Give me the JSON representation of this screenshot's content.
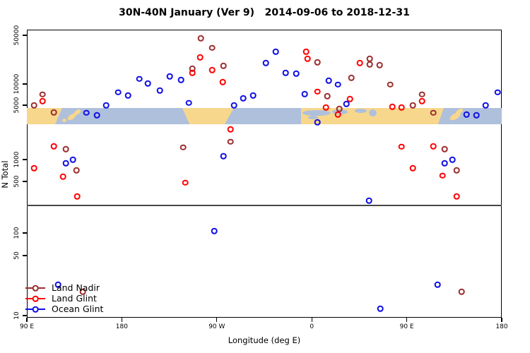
{
  "title": "30N-40N January (Ver 9)   2014-09-06 to 2018-12-31",
  "x_axis": {
    "label": "Longitude (deg E)",
    "ticks": [
      {
        "deg": 0,
        "label": "90 E"
      },
      {
        "deg": 90,
        "label": "180"
      },
      {
        "deg": 180,
        "label": "90 W"
      },
      {
        "deg": 270,
        "label": "0"
      },
      {
        "deg": 360,
        "label": "90 E"
      },
      {
        "deg": 450,
        "label": "180"
      }
    ]
  },
  "y_axis": {
    "label": "N Total",
    "scale": "log",
    "ticks": [
      {
        "value": 50000,
        "label": "50000"
      },
      {
        "value": 10000,
        "label": "10000"
      },
      {
        "value": 5000,
        "label": "5000"
      },
      {
        "value": 1000,
        "label": "1000"
      },
      {
        "value": 500,
        "label": "500"
      },
      {
        "value": 100,
        "label": "100"
      },
      {
        "value": 50,
        "label": "50"
      },
      {
        "value": 10,
        "label": "10"
      }
    ]
  },
  "map_band": {
    "land_color": "#F7D78C",
    "ocean_color": "#AFC0DC"
  },
  "chart_data": {
    "type": "scatter",
    "x_unit": "degrees east along axis starting at 90E (axis spans 450 deg, longitudes wrap)",
    "y_unit": "N Total (log scale)",
    "series": [
      {
        "name": "Land Nadir",
        "color": "#9B2D2D",
        "points": [
          [
            164.7,
            45500
          ],
          [
            175.4,
            33000
          ],
          [
            156.7,
            16700
          ],
          [
            186.2,
            18300
          ],
          [
            275.2,
            20600
          ],
          [
            284.6,
            6750
          ],
          [
            296.0,
            4500
          ],
          [
            307.4,
            12300
          ],
          [
            324.8,
            23200
          ],
          [
            324.8,
            19200
          ],
          [
            334.2,
            18800
          ],
          [
            344.2,
            9800
          ],
          [
            374.3,
            7100
          ],
          [
            385.1,
            4000
          ],
          [
            407.1,
            715
          ],
          [
            395.8,
            1370
          ],
          [
            411.8,
            19
          ],
          [
            52.9,
            19
          ],
          [
            6.7,
            5000
          ],
          [
            365.6,
            5000
          ],
          [
            14.7,
            7100
          ],
          [
            25.4,
            4050
          ],
          [
            36.8,
            1370
          ],
          [
            46.9,
            715
          ],
          [
            148.0,
            1430
          ],
          [
            192.9,
            1690
          ]
        ]
      },
      {
        "name": "Land Glint",
        "color": "#FF0000",
        "points": [
          [
            14.7,
            5700
          ],
          [
            164.1,
            24300
          ],
          [
            156.7,
            14500
          ],
          [
            175.4,
            15900
          ],
          [
            185.5,
            10700
          ],
          [
            264.5,
            29200
          ],
          [
            265.8,
            23200
          ],
          [
            275.2,
            7800
          ],
          [
            283.2,
            4700
          ],
          [
            294.6,
            3800
          ],
          [
            306.0,
            6150
          ],
          [
            315.4,
            20100
          ],
          [
            346.2,
            4800
          ],
          [
            354.9,
            4700
          ],
          [
            374.3,
            5700
          ],
          [
            354.9,
            1460
          ],
          [
            385.1,
            1490
          ],
          [
            365.6,
            765
          ],
          [
            393.8,
            600
          ],
          [
            407.1,
            315
          ],
          [
            25.4,
            1490
          ],
          [
            6.7,
            765
          ],
          [
            34.2,
            585
          ],
          [
            47.5,
            315
          ],
          [
            150.0,
            480
          ],
          [
            192.9,
            2460
          ]
        ]
      },
      {
        "name": "Ocean Glint",
        "color": "#0E0EE6",
        "points": [
          [
            75.0,
            4950
          ],
          [
            86.4,
            7600
          ],
          [
            95.8,
            6900
          ],
          [
            106.5,
            11800
          ],
          [
            114.5,
            10200
          ],
          [
            125.9,
            8100
          ],
          [
            135.3,
            12900
          ],
          [
            146.0,
            11500
          ],
          [
            153.4,
            5400
          ],
          [
            56.3,
            4000
          ],
          [
            66.3,
            3700
          ],
          [
            196.2,
            5000
          ],
          [
            204.9,
            6300
          ],
          [
            214.3,
            6900
          ],
          [
            226.3,
            20100
          ],
          [
            235.7,
            29200
          ],
          [
            245.1,
            14500
          ],
          [
            255.1,
            14200
          ],
          [
            263.2,
            7200
          ],
          [
            285.9,
            11200
          ],
          [
            294.6,
            9800
          ],
          [
            275.2,
            3000
          ],
          [
            302.7,
            5200
          ],
          [
            36.8,
            890
          ],
          [
            43.5,
            1000
          ],
          [
            186.2,
            1110
          ],
          [
            177.5,
            107
          ],
          [
            395.8,
            890
          ],
          [
            403.1,
            1000
          ],
          [
            416.5,
            3800
          ],
          [
            425.9,
            3700
          ],
          [
            434.6,
            4950
          ],
          [
            446.0,
            7600
          ],
          [
            324.1,
            275
          ],
          [
            334.8,
            12
          ],
          [
            389.1,
            23
          ],
          [
            29.5,
            23
          ]
        ]
      }
    ]
  }
}
